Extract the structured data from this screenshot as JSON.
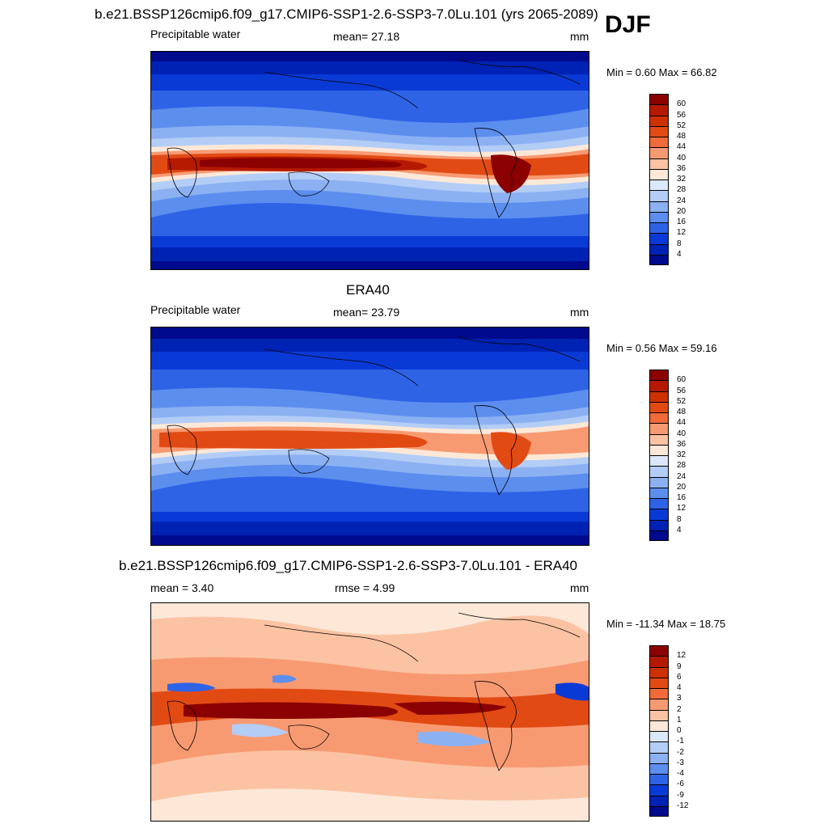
{
  "season": "DJF",
  "panels": [
    {
      "title": "b.e21.BSSP126cmip6.f09_g17.CMIP6-SSP1-2.6-SSP3-7.0Lu.101 (yrs 2065-2089)",
      "left_label": "Precipitable water",
      "center_label": "mean=  27.18",
      "units": "mm",
      "minmax": "Min =   0.60 Max =  66.82",
      "kind": "abs"
    },
    {
      "title": "ERA40",
      "left_label": "Precipitable water",
      "center_label": "mean=  23.79",
      "units": "mm",
      "minmax": "Min =   0.56 Max =  59.16",
      "kind": "abs"
    },
    {
      "title": "b.e21.BSSP126cmip6.f09_g17.CMIP6-SSP1-2.6-SSP3-7.0Lu.101 - ERA40",
      "left_label": "mean =   3.40",
      "center_label": "rmse =   4.99",
      "units": "mm",
      "minmax": "Min = -11.34 Max =  18.75",
      "kind": "diff"
    }
  ],
  "colorbars": {
    "abs": {
      "labels": [
        "60",
        "56",
        "52",
        "48",
        "44",
        "40",
        "36",
        "32",
        "28",
        "24",
        "20",
        "16",
        "12",
        "8",
        "4"
      ],
      "colors": [
        "#8b0000",
        "#b51a00",
        "#cf3000",
        "#e24a14",
        "#f06a3a",
        "#f79a72",
        "#fbc3a3",
        "#fde8d8",
        "#dbe8fa",
        "#b3cdf6",
        "#8cb1f2",
        "#5c8eee",
        "#2f63e6",
        "#0a3ad6",
        "#0022b4",
        "#000a8c"
      ]
    },
    "diff": {
      "labels": [
        "12",
        "9",
        "6",
        "4",
        "3",
        "2",
        "1",
        "0",
        "-1",
        "-2",
        "-3",
        "-4",
        "-6",
        "-9",
        "-12"
      ],
      "colors": [
        "#8b0000",
        "#b51a00",
        "#cf3000",
        "#e24a14",
        "#f06a3a",
        "#f79a72",
        "#fbc3a3",
        "#fde8d8",
        "#dbe8fa",
        "#b3cdf6",
        "#8cb1f2",
        "#5c8eee",
        "#2f63e6",
        "#0a3ad6",
        "#0022b4",
        "#000a8c"
      ]
    }
  }
}
